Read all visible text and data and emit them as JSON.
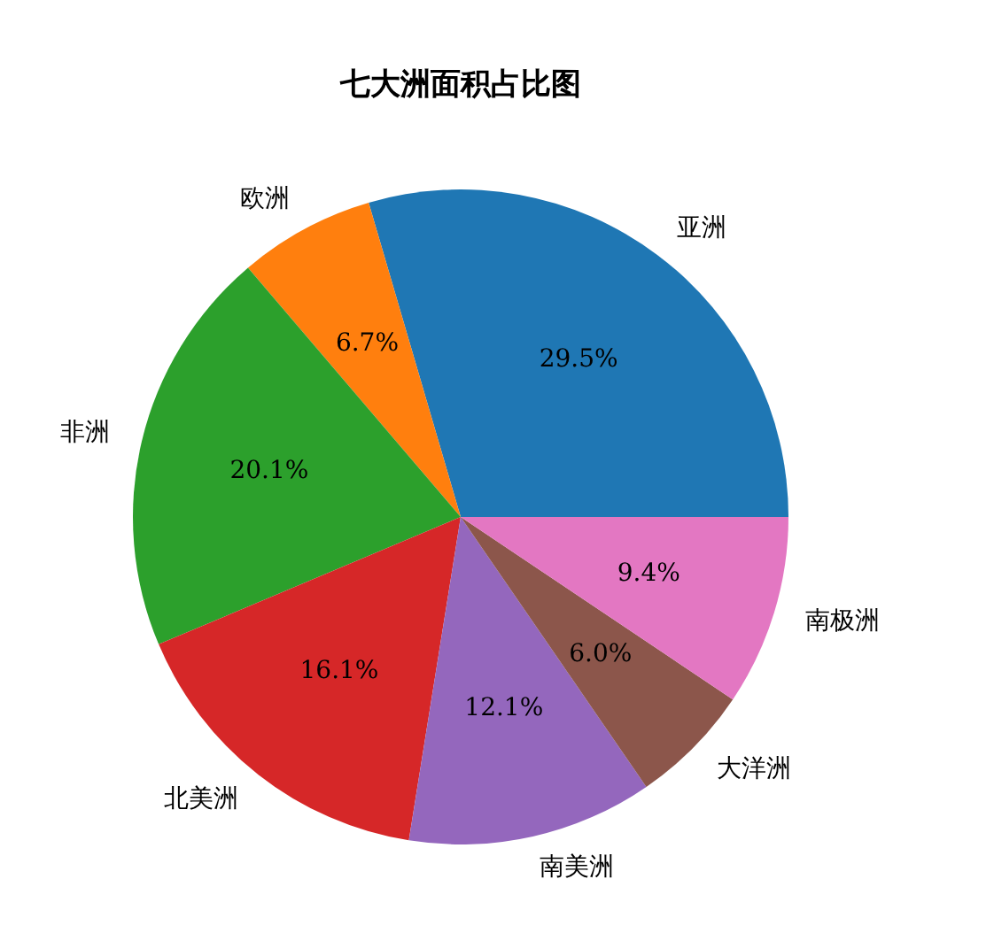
{
  "chart_data": {
    "type": "pie",
    "title": "七大洲面积占比图",
    "categories": [
      "亚洲",
      "欧洲",
      "非洲",
      "北美洲",
      "南美洲",
      "大洋洲",
      "南极洲"
    ],
    "values": [
      29.5,
      6.7,
      20.1,
      16.1,
      12.1,
      6.0,
      9.4
    ],
    "colors": [
      "#1f77b4",
      "#ff7f0e",
      "#2ca02c",
      "#d62728",
      "#9467bd",
      "#8c564b",
      "#e377c2"
    ],
    "value_labels": [
      "29.5%",
      "6.7%",
      "20.1%",
      "16.1%",
      "12.1%",
      "6.0%",
      "9.4%"
    ],
    "legend": false
  }
}
